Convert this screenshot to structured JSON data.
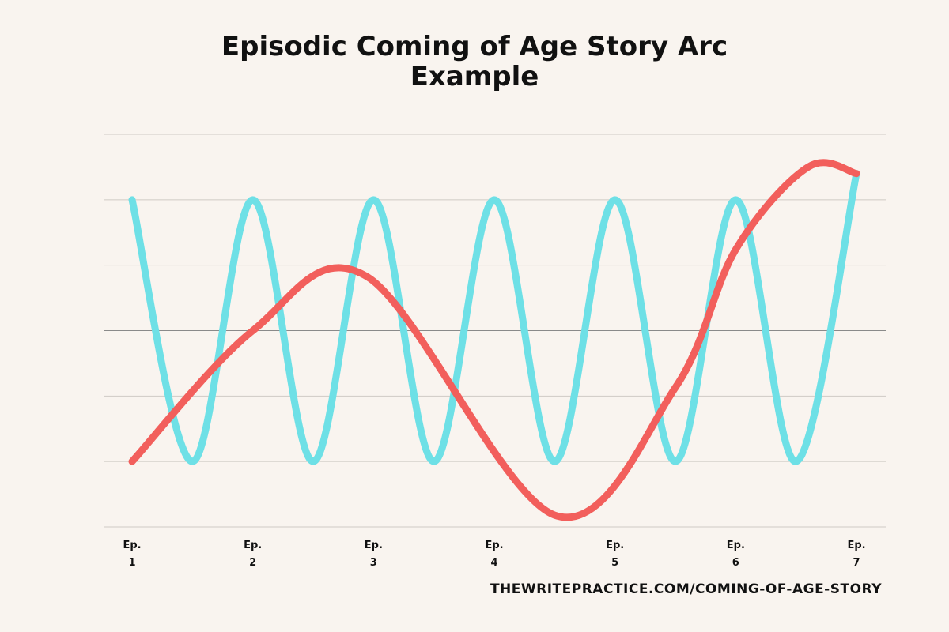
{
  "chart_data": {
    "type": "line",
    "title": "Episodic Coming of Age Story Arc Example",
    "categories": [
      "Ep. 1",
      "Ep. 2",
      "Ep. 3",
      "Ep. 4",
      "Ep. 5",
      "Ep. 6",
      "Ep. 7"
    ],
    "xlim": [
      1,
      7
    ],
    "ylim": [
      -3,
      3
    ],
    "yticks": [
      -3,
      -2,
      -1,
      0,
      1,
      2,
      3
    ],
    "grid": true,
    "series": [
      {
        "color": "#6ee0e6",
        "x": [
          1,
          1.5,
          2,
          2.5,
          3,
          3.5,
          4,
          4.5,
          5,
          5.5,
          6,
          6.5,
          7
        ],
        "values": [
          2,
          -2,
          2,
          -2,
          2,
          -2,
          2,
          -2,
          2,
          -2,
          2,
          -2,
          2.4
        ]
      },
      {
        "color": "#f25f5c",
        "x": [
          1,
          2,
          2.95,
          4.5,
          5.5,
          6,
          6.6,
          7
        ],
        "values": [
          -2,
          0,
          0.82,
          -2.82,
          -0.87,
          1.24,
          2.5,
          2.4
        ]
      }
    ],
    "source": "THEWRITEPRACTICE.COM/COMING-OF-AGE-STORY"
  }
}
